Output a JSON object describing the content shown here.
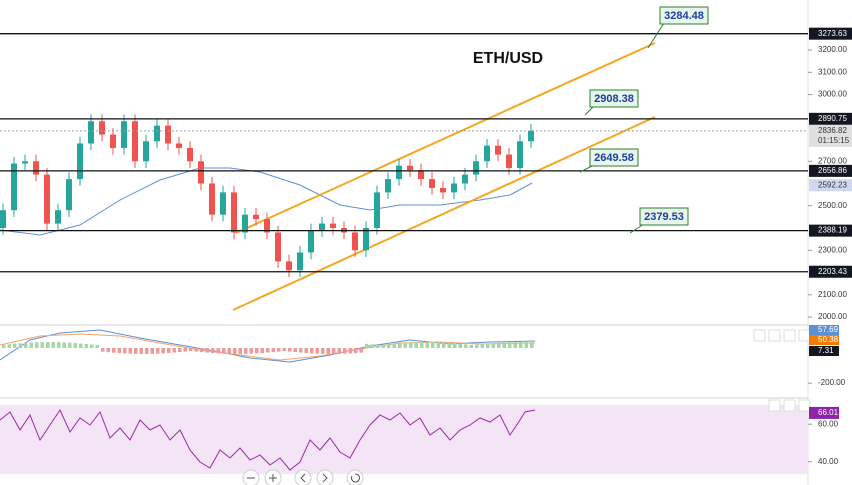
{
  "chart_data": {
    "type": "candlestick",
    "title": "ETH/USD",
    "open": [
      2400,
      2480,
      2690,
      2700,
      2640,
      2420,
      2480,
      2620,
      2780,
      2880,
      2820,
      2760,
      2880,
      2700,
      2790,
      2860,
      2780,
      2760,
      2700,
      2600,
      2460,
      2560,
      2380,
      2460,
      2440,
      2380,
      2250,
      2210,
      2290,
      2390,
      2420,
      2400,
      2380,
      2300,
      2400,
      2560,
      2620,
      2680,
      2660,
      2620,
      2580,
      2560,
      2600,
      2640,
      2700,
      2770,
      2730,
      2670,
      2790
    ],
    "high": [
      2510,
      2720,
      2730,
      2730,
      2670,
      2510,
      2650,
      2810,
      2910,
      2910,
      2850,
      2910,
      2910,
      2820,
      2890,
      2890,
      2810,
      2790,
      2730,
      2630,
      2590,
      2590,
      2490,
      2490,
      2470,
      2410,
      2280,
      2320,
      2420,
      2450,
      2450,
      2430,
      2410,
      2430,
      2590,
      2650,
      2710,
      2710,
      2690,
      2650,
      2610,
      2630,
      2670,
      2730,
      2800,
      2800,
      2760,
      2820,
      2867
    ],
    "low": [
      2370,
      2450,
      2660,
      2610,
      2390,
      2390,
      2450,
      2590,
      2750,
      2790,
      2730,
      2730,
      2670,
      2670,
      2760,
      2750,
      2730,
      2670,
      2570,
      2430,
      2430,
      2350,
      2350,
      2410,
      2350,
      2220,
      2180,
      2180,
      2260,
      2360,
      2370,
      2350,
      2270,
      2270,
      2370,
      2530,
      2590,
      2630,
      2590,
      2550,
      2530,
      2530,
      2570,
      2610,
      2670,
      2700,
      2640,
      2640,
      2760
    ],
    "close": [
      2480,
      2690,
      2700,
      2640,
      2420,
      2480,
      2620,
      2780,
      2880,
      2820,
      2760,
      2880,
      2700,
      2790,
      2860,
      2780,
      2760,
      2700,
      2600,
      2460,
      2560,
      2380,
      2460,
      2440,
      2380,
      2250,
      2210,
      2290,
      2390,
      2420,
      2400,
      2380,
      2300,
      2400,
      2560,
      2620,
      2680,
      2660,
      2620,
      2580,
      2560,
      2600,
      2640,
      2700,
      2770,
      2730,
      2670,
      2790,
      2837
    ],
    "colors": {
      "up": "#26a69a",
      "down": "#ef5350"
    },
    "ylim": [
      1964,
      3425
    ],
    "yticks": [
      {
        "value": 3200,
        "label": "3200.00"
      },
      {
        "value": 3100,
        "label": "3100.00"
      },
      {
        "value": 3000,
        "label": "3000.00"
      },
      {
        "value": 2700,
        "label": "2700.00"
      },
      {
        "value": 2500,
        "label": "2500.00"
      },
      {
        "value": 2300,
        "label": "2300.00"
      },
      {
        "value": 2100,
        "label": "2100.00"
      },
      {
        "value": 2000,
        "label": "2000.00"
      }
    ],
    "levels": [
      3273.63,
      2890.75,
      2656.86,
      2388.19,
      2203.43
    ],
    "last_price": 2836.82,
    "countdown": "01:15:15",
    "moving_average": 2592.23,
    "annotations": [
      3284.48,
      2908.38,
      2649.58,
      2379.53
    ],
    "macd": {
      "values": [
        57.69,
        50.38,
        7.31
      ],
      "ylim": [
        -270,
        160
      ],
      "yticks": [
        {
          "value": -200,
          "label": "-200.00"
        }
      ]
    },
    "rsi": {
      "value": 66.01,
      "ylim": [
        27.6,
        72.9
      ],
      "yticks": [
        {
          "value": 60,
          "label": "60.00"
        },
        {
          "value": 40,
          "label": "40.00"
        }
      ]
    }
  }
}
